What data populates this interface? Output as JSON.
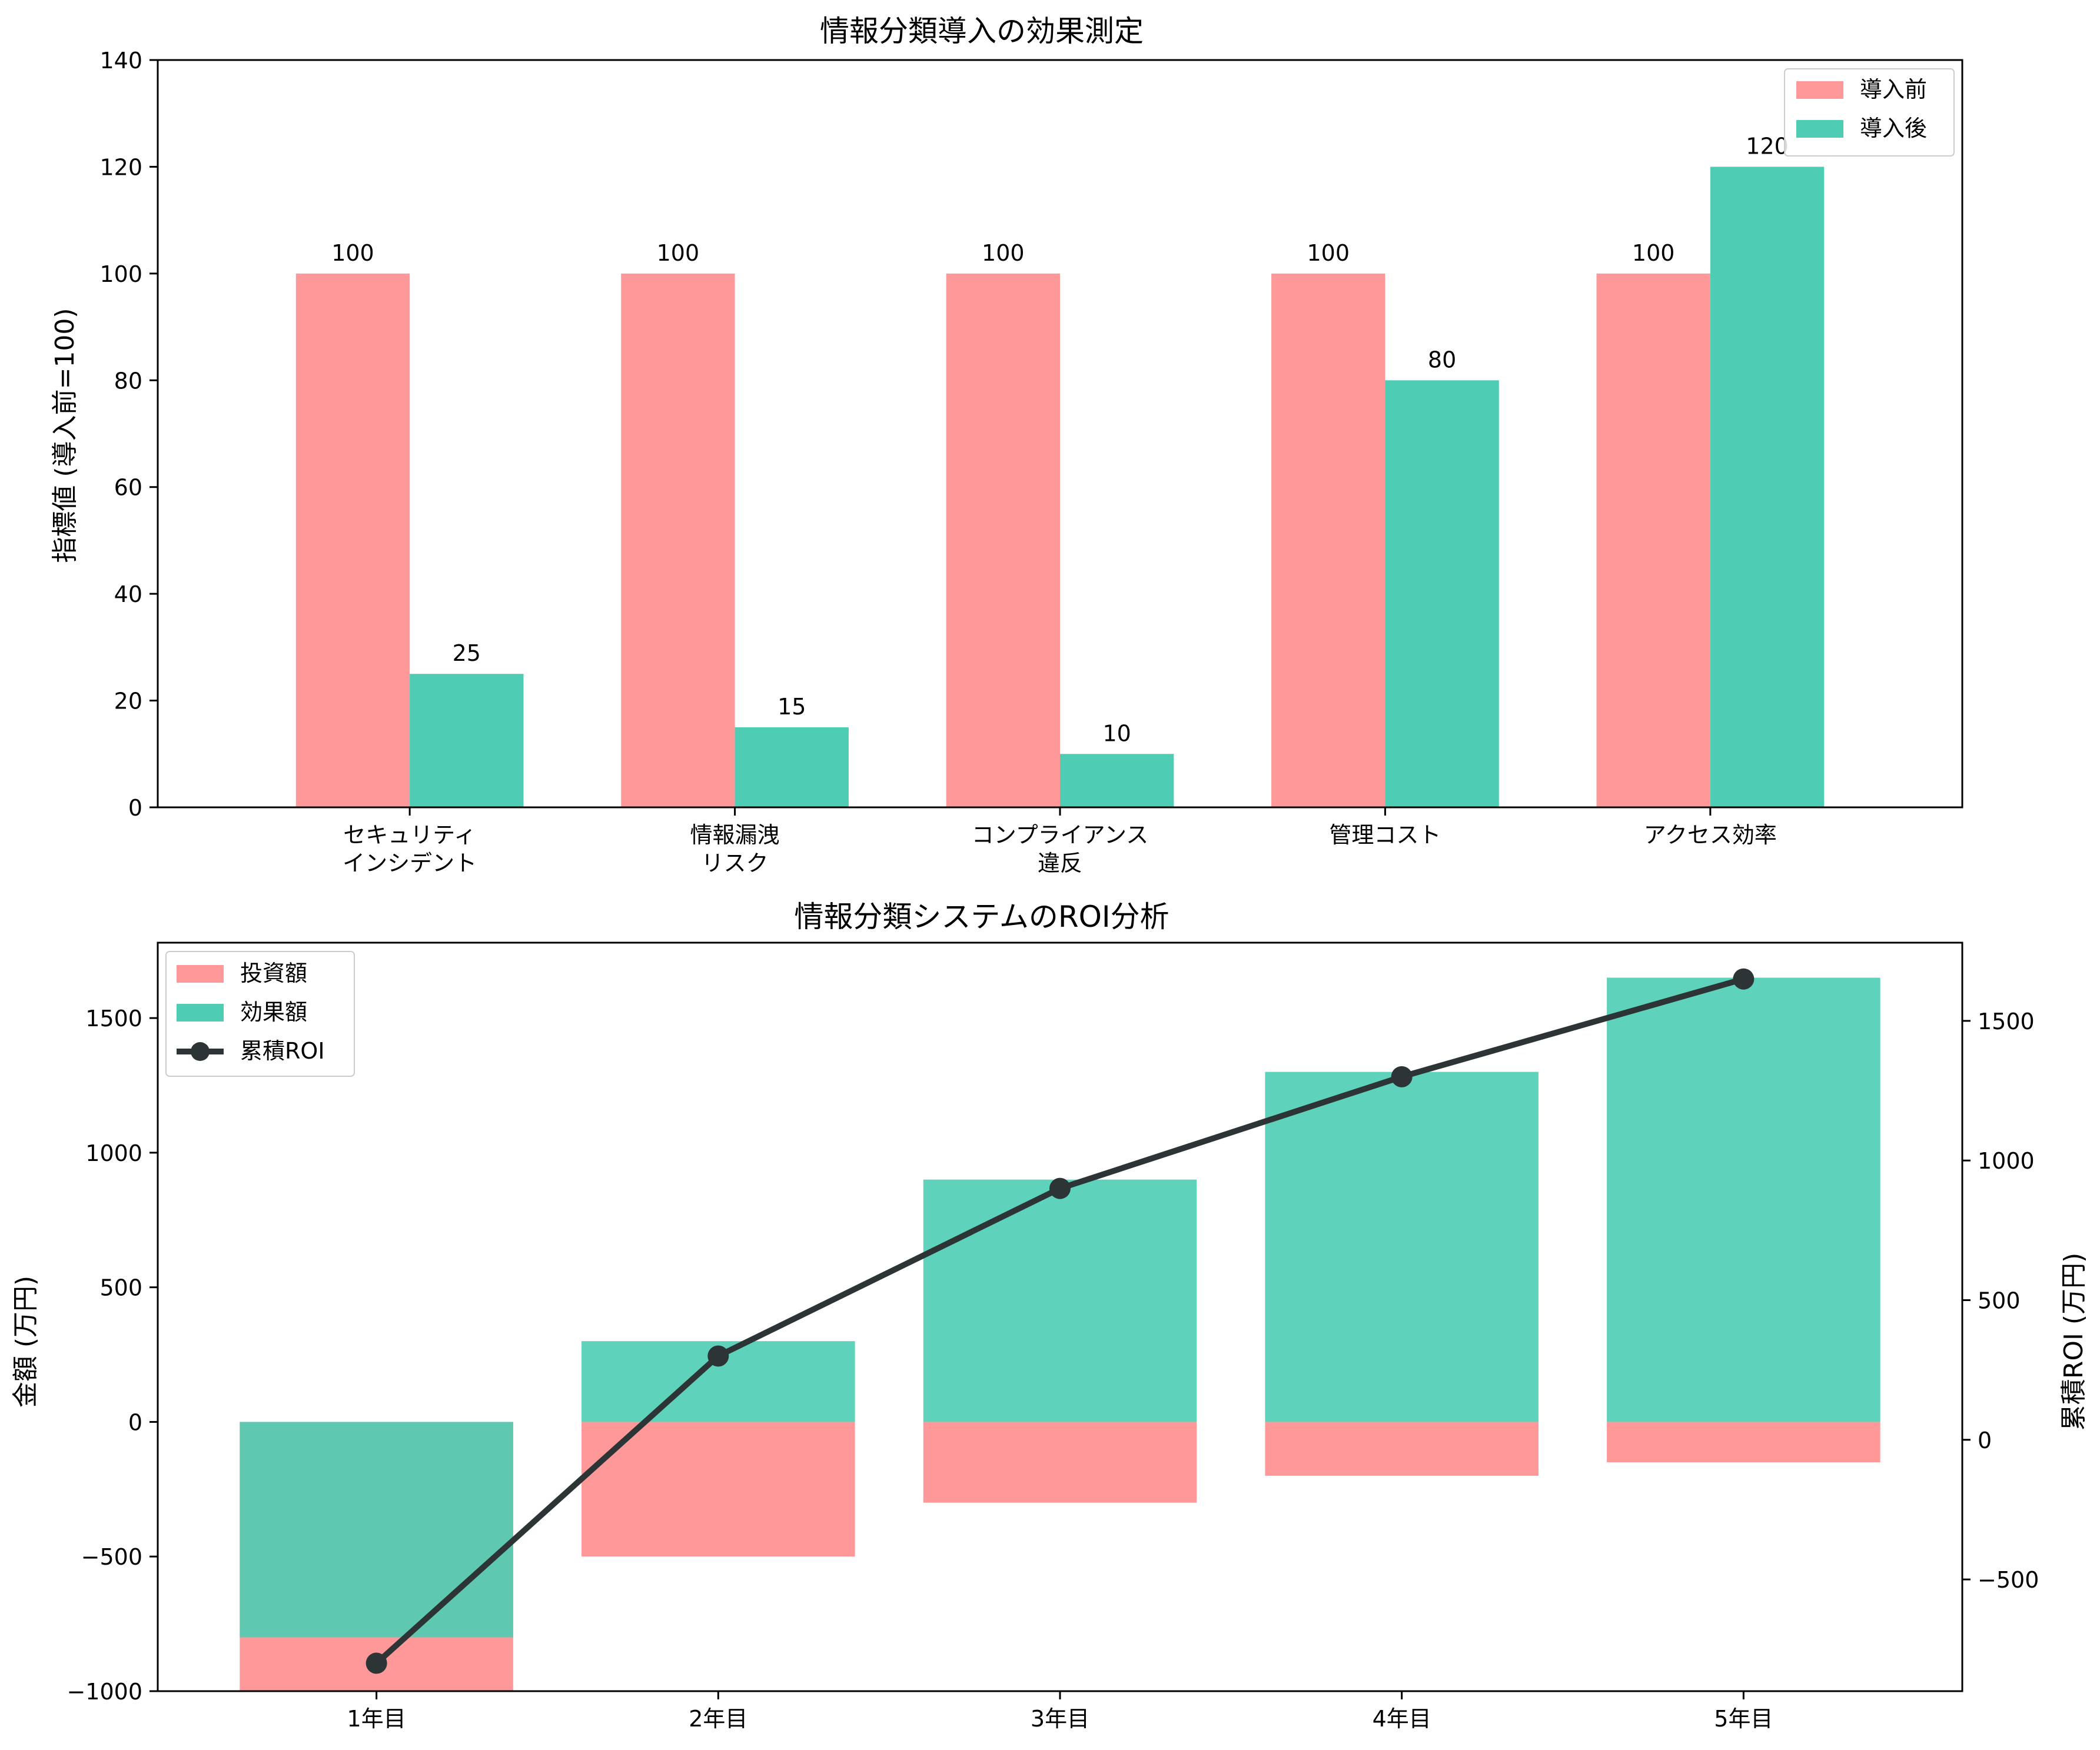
{
  "chart_data": [
    {
      "type": "bar",
      "title": "情報分類導入の効果測定",
      "xlabel": "",
      "ylabel": "指標値 (導入前=100)",
      "ylim": [
        0,
        140
      ],
      "yticks": [
        0,
        20,
        40,
        60,
        80,
        100,
        120,
        140
      ],
      "categories": [
        "セキュリティ\nインシデント",
        "情報漏洩\nリスク",
        "コンプライアンス\n違反",
        "管理コスト",
        "アクセス効率"
      ],
      "series": [
        {
          "name": "導入前",
          "values": [
            100,
            100,
            100,
            100,
            100
          ],
          "color": "#ff9999"
        },
        {
          "name": "導入後",
          "values": [
            25,
            15,
            10,
            80,
            120
          ],
          "color": "#4ecdb4"
        }
      ],
      "data_labels": true,
      "grid": false,
      "legend": "top-right"
    },
    {
      "type": "bar",
      "title": "情報分類システムのROI分析",
      "xlabel": "",
      "ylabel": "金額 (万円)",
      "y2label": "累積ROI (万円)",
      "ylim": [
        -1000,
        1780
      ],
      "yticks": [
        -1000,
        -500,
        0,
        500,
        1000,
        1500
      ],
      "y2lim": [
        -900,
        1780
      ],
      "y2ticks": [
        -500,
        0,
        500,
        1000,
        1500
      ],
      "categories": [
        "1年目",
        "2年目",
        "3年目",
        "4年目",
        "5年目"
      ],
      "series": [
        {
          "name": "投資額",
          "type": "bar",
          "values": [
            -1000,
            -500,
            -300,
            -200,
            -150
          ],
          "color": "#ff9999"
        },
        {
          "name": "効果額",
          "type": "bar",
          "values": [
            -800,
            300,
            900,
            1300,
            1650
          ],
          "color": "#4ecdb4"
        },
        {
          "name": "累積ROI",
          "type": "line",
          "axis": "right",
          "values": [
            -800,
            300,
            900,
            1300,
            1650
          ],
          "color": "#2d3436"
        }
      ],
      "grid": false,
      "legend": "top-left"
    }
  ]
}
